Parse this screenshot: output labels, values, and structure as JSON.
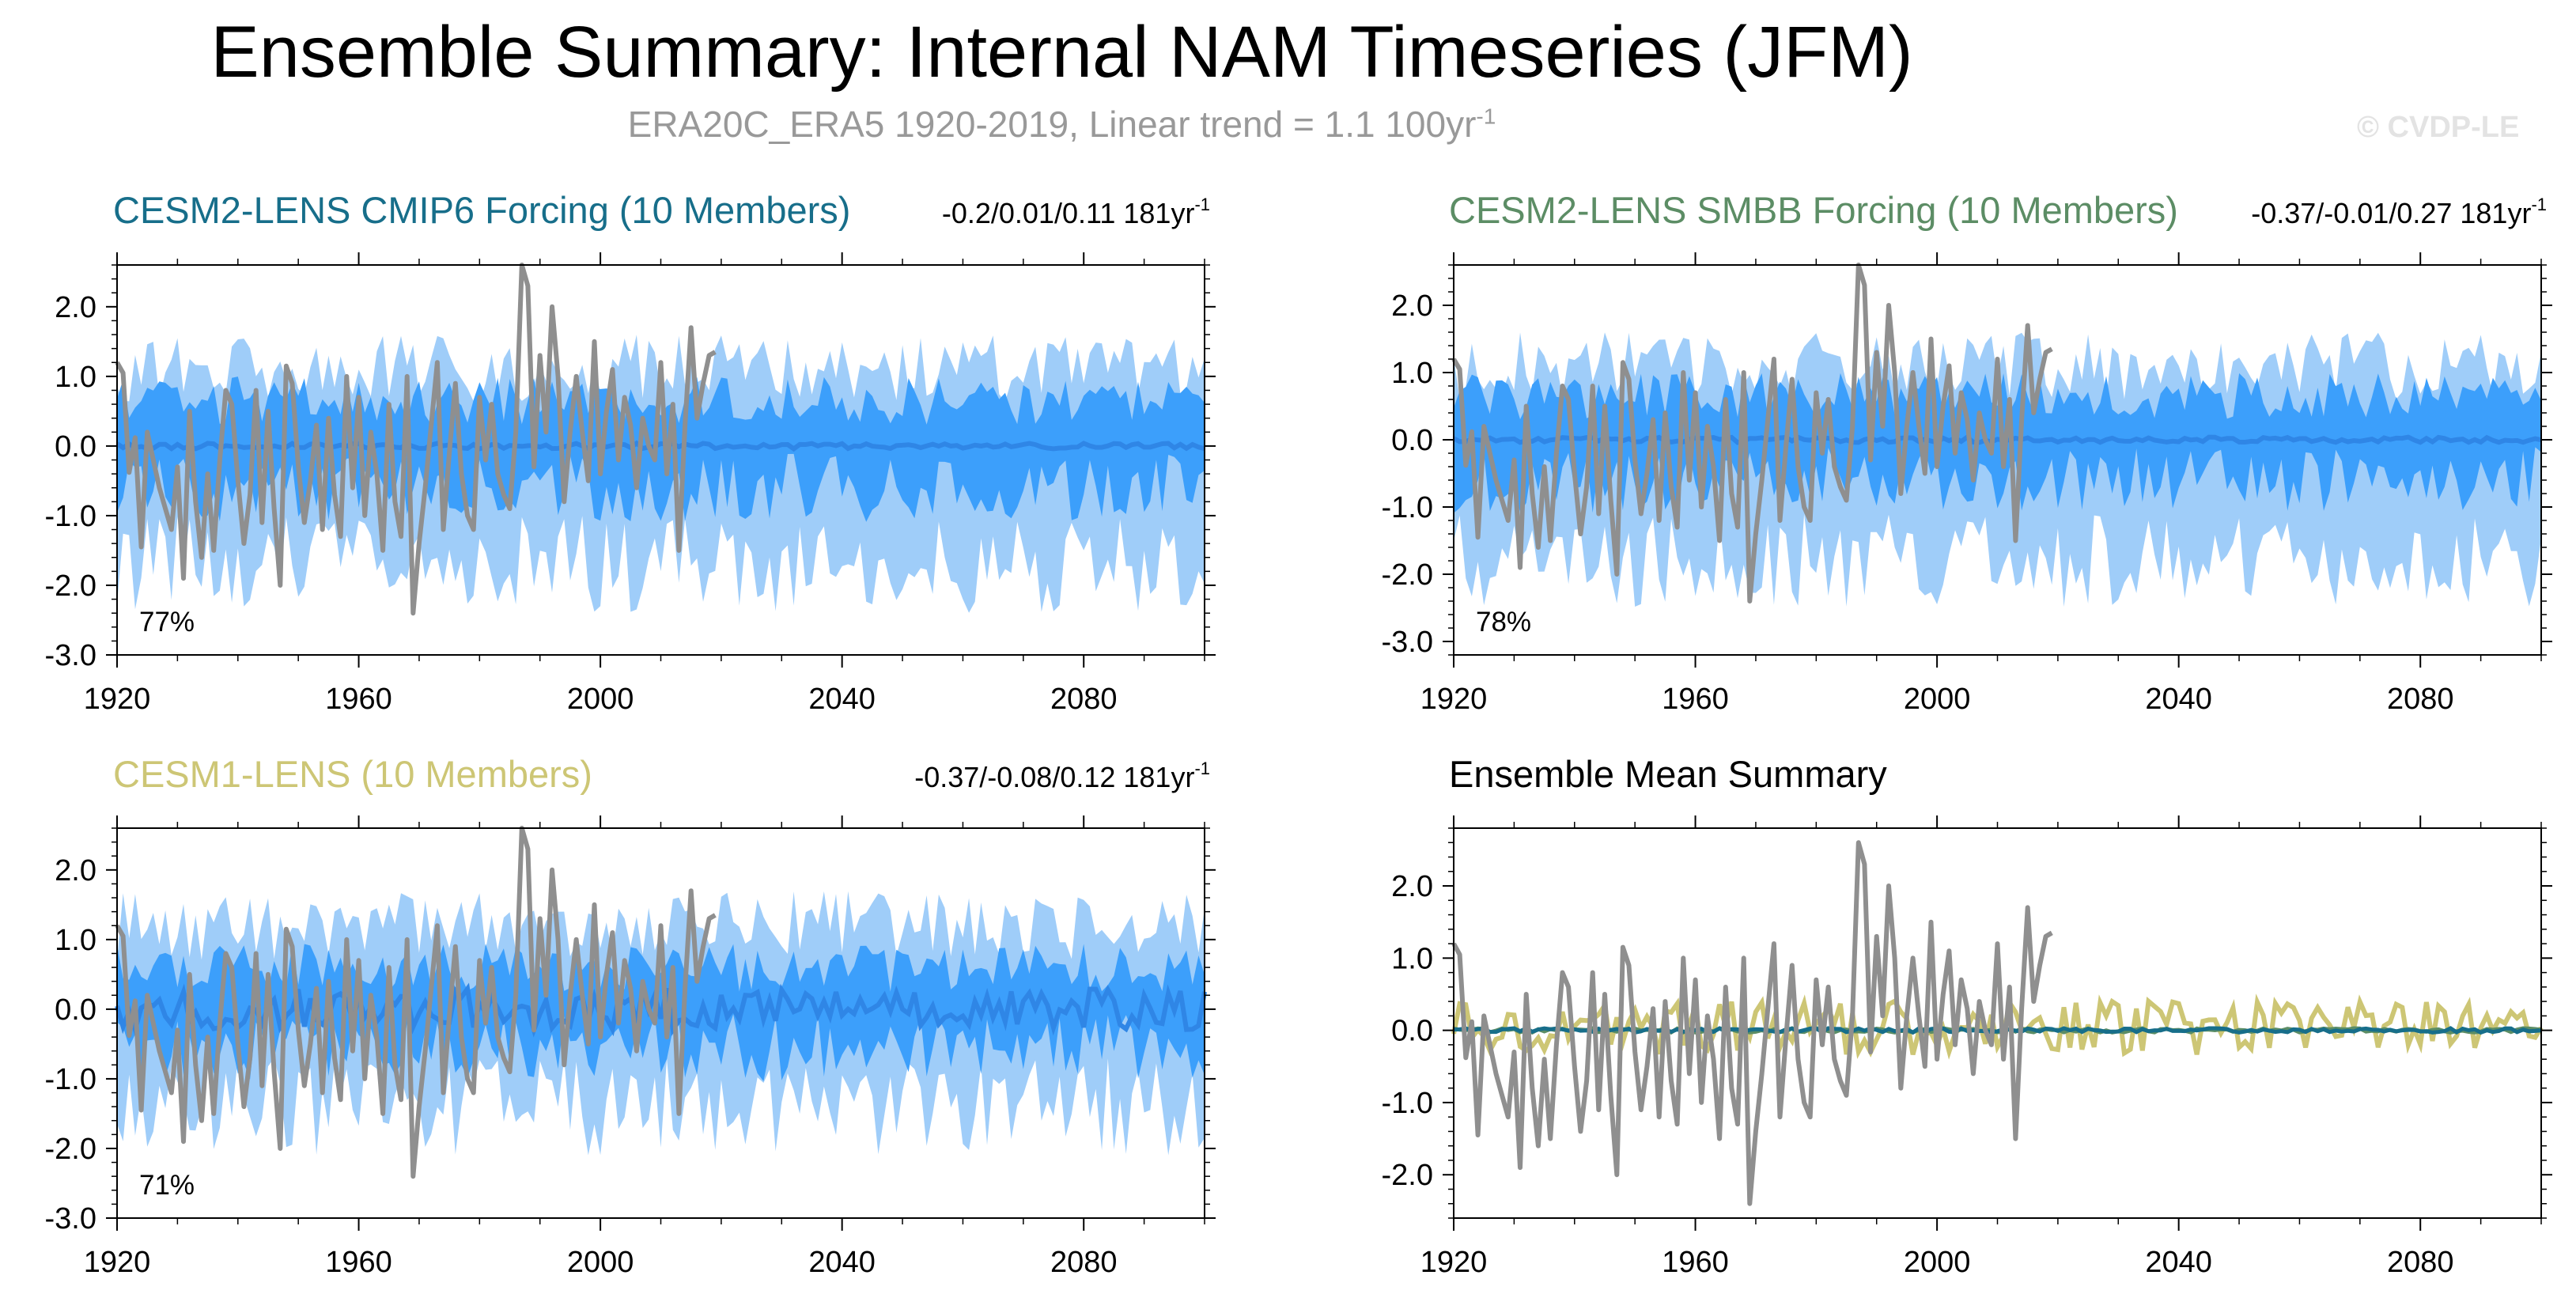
{
  "title": "Ensemble Summary: Internal NAM Timeseries (JFM)",
  "subtitle_prefix": "ERA20C_ERA5 1920-2019, Linear trend = 1.1 100yr",
  "subtitle_exp": "-1",
  "watermark": "© CVDP-LE",
  "colors": {
    "band_outer": "#9fcdf9",
    "band_inner": "#3c9ffb",
    "ens_mean": "#2f86e6",
    "obs": "#8f8f8f",
    "cesm2_cmip6": "#176e8a",
    "cesm2_smbb": "#5c8d65",
    "cesm1": "#cdc675"
  },
  "chart_data": [
    {
      "type": "area",
      "id": "cesm2-cmip6",
      "title": "CESM2-LENS CMIP6 Forcing (10 Members)",
      "title_color": "#176e8a",
      "stats": "-0.2/0.01/0.11 181yr",
      "stats_exp": "-1",
      "percent": "77%",
      "ylim": [
        -3.0,
        2.6
      ],
      "yticks": [
        -3.0,
        -2.0,
        -1.0,
        0.0,
        1.0,
        2.0
      ],
      "ytick_labels": [
        "-3.0",
        "-2.0",
        "-1.0",
        "0.0",
        "1.0",
        "2.0"
      ],
      "xlim": [
        1920,
        2100
      ],
      "xticks": [
        1920,
        1960,
        2000,
        2040,
        2080
      ],
      "xtick_labels": [
        "1920",
        "1960",
        "2000",
        "2040",
        "2080"
      ],
      "series": [
        {
          "name": "ensemble range",
          "style": "outer-band",
          "low_mean": -1.7,
          "high_mean": 1.1
        },
        {
          "name": "interquartile",
          "style": "inner-band",
          "low_mean": -0.6,
          "high_mean": 0.65
        },
        {
          "name": "ensemble mean",
          "style": "mean-line",
          "amp": 0.04
        },
        {
          "name": "ERA20C_ERA5",
          "style": "obs",
          "years": [
            1920,
            2019
          ]
        }
      ]
    },
    {
      "type": "area",
      "id": "cesm2-smbb",
      "title": "CESM2-LENS SMBB Forcing (10 Members)",
      "title_color": "#5c8d65",
      "stats": "-0.37/-0.01/0.27 181yr",
      "stats_exp": "-1",
      "percent": "78%",
      "ylim": [
        -3.2,
        2.6
      ],
      "yticks": [
        -3.0,
        -2.0,
        -1.0,
        0.0,
        1.0,
        2.0
      ],
      "ytick_labels": [
        "-3.0",
        "-2.0",
        "-1.0",
        "0.0",
        "1.0",
        "2.0"
      ],
      "xlim": [
        1920,
        2100
      ],
      "xticks": [
        1920,
        1960,
        2000,
        2040,
        2080
      ],
      "xtick_labels": [
        "1920",
        "1960",
        "2000",
        "2040",
        "2080"
      ],
      "series": [
        {
          "name": "ensemble range",
          "style": "outer-band",
          "low_mean": -1.8,
          "high_mean": 1.1
        },
        {
          "name": "interquartile",
          "style": "inner-band",
          "low_mean": -0.6,
          "high_mean": 0.65
        },
        {
          "name": "ensemble mean",
          "style": "mean-line",
          "amp": 0.04
        },
        {
          "name": "ERA20C_ERA5",
          "style": "obs",
          "years": [
            1920,
            2019
          ]
        }
      ]
    },
    {
      "type": "area",
      "id": "cesm1",
      "title": "CESM1-LENS (10 Members)",
      "title_color": "#cdc675",
      "stats": "-0.37/-0.08/0.12 181yr",
      "stats_exp": "-1",
      "percent": "71%",
      "ylim": [
        -3.0,
        2.6
      ],
      "yticks": [
        -3.0,
        -2.0,
        -1.0,
        0.0,
        1.0,
        2.0
      ],
      "ytick_labels": [
        "-3.0",
        "-2.0",
        "-1.0",
        "0.0",
        "1.0",
        "2.0"
      ],
      "xlim": [
        1920,
        2100
      ],
      "xticks": [
        1920,
        1960,
        2000,
        2040,
        2080
      ],
      "xtick_labels": [
        "1920",
        "1960",
        "2000",
        "2040",
        "2080"
      ],
      "series": [
        {
          "name": "ensemble range",
          "style": "outer-band",
          "low_mean": -1.4,
          "high_mean": 1.2
        },
        {
          "name": "interquartile",
          "style": "inner-band",
          "low_mean": -0.55,
          "high_mean": 0.6
        },
        {
          "name": "ensemble mean",
          "style": "mean-line",
          "amp": 0.3
        },
        {
          "name": "ERA20C_ERA5",
          "style": "obs",
          "years": [
            1920,
            2019
          ]
        }
      ]
    },
    {
      "type": "line",
      "id": "ensemble-mean-summary",
      "title": "Ensemble Mean Summary",
      "title_color": "#000000",
      "stats": "",
      "stats_exp": "",
      "percent": "",
      "ylim": [
        -2.6,
        2.8
      ],
      "yticks": [
        -2.0,
        -1.0,
        0.0,
        1.0,
        2.0
      ],
      "ytick_labels": [
        "-2.0",
        "-1.0",
        "0.0",
        "1.0",
        "2.0"
      ],
      "xlim": [
        1920,
        2100
      ],
      "xticks": [
        1920,
        1960,
        2000,
        2040,
        2080
      ],
      "xtick_labels": [
        "1920",
        "1960",
        "2000",
        "2040",
        "2080"
      ],
      "series": [
        {
          "name": "ERA20C_ERA5",
          "style": "obs",
          "years": [
            1920,
            2019
          ]
        },
        {
          "name": "CESM1-LENS",
          "style": "cesm1-mean",
          "color": "#cdc675"
        },
        {
          "name": "CESM2-LENS SMBB",
          "style": "flat",
          "color": "#5c8d65"
        },
        {
          "name": "CESM2-LENS CMIP6",
          "style": "flat",
          "color": "#176e8a"
        }
      ]
    }
  ],
  "obs_values": [
    1.2,
    1.05,
    -0.38,
    0.12,
    -1.45,
    0.2,
    -0.2,
    -0.6,
    -0.9,
    -1.2,
    -0.3,
    -1.9,
    0.5,
    -0.8,
    -1.6,
    -0.4,
    -1.5,
    -0.2,
    0.8,
    0.6,
    -0.5,
    -1.4,
    -0.7,
    0.8,
    -1.1,
    0.5,
    -0.9,
    -2.0,
    1.15,
    0.9,
    -0.3,
    -1.1,
    -0.5,
    0.3,
    -1.2,
    0.4,
    -0.7,
    -1.3,
    1.0,
    -0.6,
    0.7,
    -1.0,
    0.2,
    -0.4,
    -1.5,
    0.6,
    -0.8,
    -1.3,
    1.0,
    -2.4,
    -1.4,
    -0.6,
    0.3,
    1.2,
    -1.2,
    -0.1,
    0.9,
    -0.4,
    -1.0,
    -1.2,
    0.7,
    -0.2,
    0.6,
    -0.4,
    -0.7,
    -0.9,
    0.2,
    2.6,
    2.3,
    -0.3,
    1.3,
    0.2,
    2.0,
    1.0,
    -0.8,
    0.2,
    1.0,
    0.2,
    -0.5,
    1.5,
    -0.4,
    0.5,
    1.1,
    -0.2,
    0.7,
    0.3,
    -0.6,
    0.4,
    0.0,
    -0.2,
    1.2,
    -0.4,
    0.6,
    -1.5,
    0.3,
    1.7,
    0.4,
    0.9,
    1.3,
    1.35
  ]
}
